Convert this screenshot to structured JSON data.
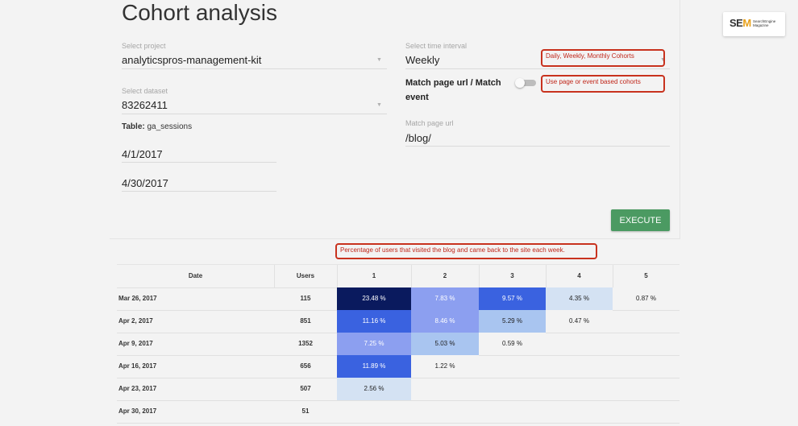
{
  "page": {
    "title": "Cohort analysis"
  },
  "form": {
    "project": {
      "label": "Select project",
      "value": "analyticspros-management-kit"
    },
    "dataset": {
      "label": "Select dataset",
      "value": "83262411"
    },
    "table": {
      "label": "Table:",
      "value": "ga_sessions"
    },
    "start_date": "4/1/2017",
    "end_date": "4/30/2017",
    "time_interval": {
      "label": "Select time interval",
      "value": "Weekly"
    },
    "match_toggle": {
      "label_line1": "Match page url / Match",
      "label_line2": "event",
      "on": false
    },
    "match_url": {
      "label": "Match page url",
      "value": "/blog/"
    },
    "execute_label": "EXECUTE"
  },
  "annotations": {
    "interval": "Daily, Weekly, Monthly Cohorts",
    "toggle": "Use page or event based cohorts",
    "table": "Percentage of users that visited the blog and came back to the site each week."
  },
  "logo": {
    "brand_se": "SE",
    "brand_m": "M",
    "tagline": "SearchEngine Magazine"
  },
  "table": {
    "headers": [
      "Date",
      "Users",
      "1",
      "2",
      "3",
      "4",
      "5"
    ],
    "rows": [
      {
        "date": "Mar 26, 2017",
        "users": "115",
        "cells": [
          "23.48 %",
          "7.83 %",
          "9.57 %",
          "4.35 %",
          "0.87 %"
        ]
      },
      {
        "date": "Apr 2, 2017",
        "users": "851",
        "cells": [
          "11.16 %",
          "8.46 %",
          "5.29 %",
          "0.47 %"
        ]
      },
      {
        "date": "Apr 9, 2017",
        "users": "1352",
        "cells": [
          "7.25 %",
          "5.03 %",
          "0.59 %"
        ]
      },
      {
        "date": "Apr 16, 2017",
        "users": "656",
        "cells": [
          "11.89 %",
          "1.22 %"
        ]
      },
      {
        "date": "Apr 23, 2017",
        "users": "507",
        "cells": [
          "2.56 %"
        ]
      },
      {
        "date": "Apr 30, 2017",
        "users": "51",
        "cells": []
      }
    ],
    "cell_colors": [
      [
        "#0a1a5e",
        "#8c9ff0",
        "#3a62e0",
        "#d4e2f3",
        "#f3f3f3"
      ],
      [
        "#3a62e0",
        "#8c9ff0",
        "#a9c5f0",
        "#f3f3f3"
      ],
      [
        "#8c9ff0",
        "#a9c5f0",
        "#f3f3f3"
      ],
      [
        "#3a62e0",
        "#f3f3f3"
      ],
      [
        "#d4e2f3"
      ]
    ]
  }
}
